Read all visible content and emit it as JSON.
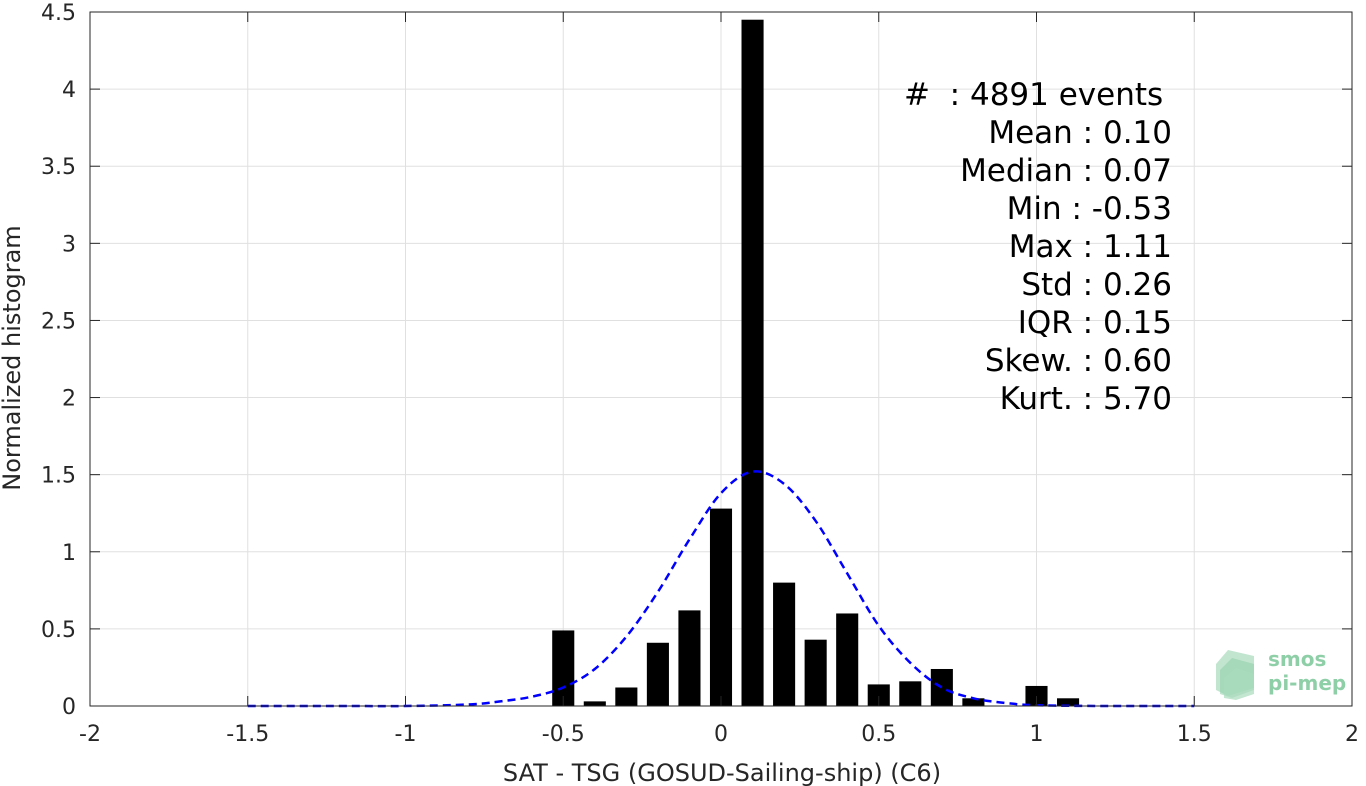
{
  "chart_data": {
    "type": "bar",
    "title": "",
    "xlabel": "SAT - TSG (GOSUD-Sailing-ship) (C6)",
    "ylabel": "Normalized histogram",
    "xlim": [
      -2,
      2
    ],
    "ylim": [
      0,
      4.5
    ],
    "xticks": [
      -2,
      -1.5,
      -1,
      -0.5,
      0,
      0.5,
      1,
      1.5,
      2
    ],
    "xtick_labels": [
      "-2",
      "-1.5",
      "-1",
      "-0.5",
      "0",
      "0.5",
      "1",
      "1.5",
      "2"
    ],
    "yticks": [
      0,
      0.5,
      1,
      1.5,
      2,
      2.5,
      3,
      3.5,
      4,
      4.5
    ],
    "ytick_labels": [
      "0",
      "0.5",
      "1",
      "1.5",
      "2",
      "2.5",
      "3",
      "3.5",
      "4",
      "4.5"
    ],
    "grid": true,
    "bar_color": "#000000",
    "bar_width": 0.07,
    "bars": {
      "x": [
        -0.5,
        -0.4,
        -0.3,
        -0.2,
        -0.1,
        0,
        0.1,
        0.2,
        0.3,
        0.4,
        0.5,
        0.6,
        0.7,
        0.8,
        1.0,
        1.1
      ],
      "values": [
        0.49,
        0.03,
        0.12,
        0.41,
        0.62,
        1.28,
        4.45,
        0.8,
        0.43,
        0.6,
        0.14,
        0.16,
        0.24,
        0.05,
        0.13,
        0.05
      ]
    },
    "fit_curve": {
      "style": "dashed",
      "color": "#0000ff",
      "x": [
        -1.5,
        -1.2,
        -1.0,
        -0.8,
        -0.7,
        -0.6,
        -0.5,
        -0.4,
        -0.3,
        -0.2,
        -0.1,
        0,
        0.1,
        0.2,
        0.3,
        0.4,
        0.5,
        0.6,
        0.7,
        0.8,
        0.9,
        1.0,
        1.2,
        1.5
      ],
      "y": [
        0.0,
        0.0,
        0.0,
        0.01,
        0.03,
        0.06,
        0.12,
        0.24,
        0.45,
        0.74,
        1.08,
        1.38,
        1.52,
        1.44,
        1.2,
        0.86,
        0.52,
        0.28,
        0.12,
        0.05,
        0.02,
        0.005,
        0.0,
        0.0
      ]
    },
    "stats": [
      {
        "label": "#  : 4891 events"
      },
      {
        "label": "Mean : 0.10"
      },
      {
        "label": "Median : 0.07"
      },
      {
        "label": "Min : -0.53"
      },
      {
        "label": "Max : 1.11"
      },
      {
        "label": "Std : 0.26"
      },
      {
        "label": "IQR : 0.15"
      },
      {
        "label": "Skew. : 0.60"
      },
      {
        "label": "Kurt. : 5.70"
      }
    ]
  },
  "logo": {
    "line1": "smos",
    "line2": "pi-mep",
    "color": "#8fcfa8"
  }
}
